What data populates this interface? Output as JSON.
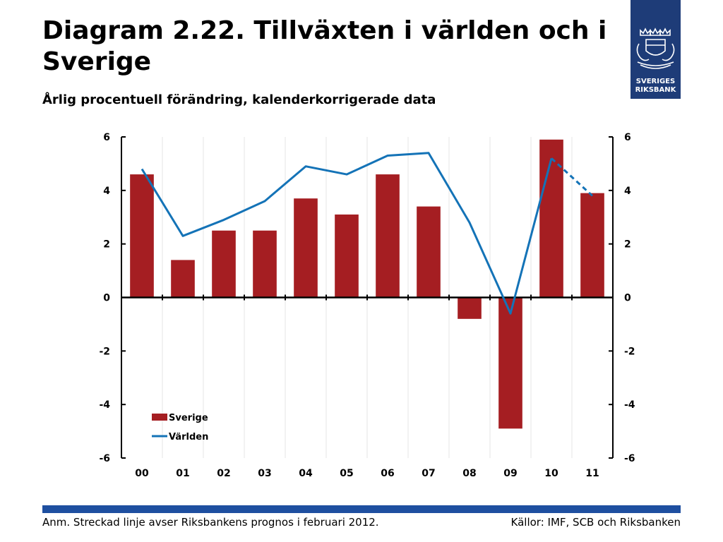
{
  "header": {
    "title": "Diagram 2.22. Tillväxten i världen och i Sverige",
    "subtitle": "Årlig procentuell förändring, kalenderkorrigerade data"
  },
  "logo": {
    "line1": "SVERIGES",
    "line2": "RIKSBANK",
    "icon": "riksbank-crest-icon",
    "color": "#1e3c78"
  },
  "chart_data": {
    "type": "bar",
    "categories": [
      "00",
      "01",
      "02",
      "03",
      "04",
      "05",
      "06",
      "07",
      "08",
      "09",
      "10",
      "11"
    ],
    "series": [
      {
        "name": "Sverige",
        "type": "bar",
        "color": "#a51e22",
        "values": [
          4.6,
          1.4,
          2.5,
          2.5,
          3.7,
          3.1,
          4.6,
          3.4,
          -0.8,
          -4.9,
          5.9,
          3.9
        ]
      },
      {
        "name": "Världen",
        "type": "line",
        "color": "#1473b7",
        "values": [
          4.8,
          2.3,
          2.9,
          3.6,
          4.9,
          4.6,
          5.3,
          5.4,
          2.8,
          -0.6,
          5.2,
          3.8
        ],
        "dashed_from_index": 10
      }
    ],
    "ylim": [
      -6,
      6
    ],
    "yticks": [
      6,
      4,
      2,
      0,
      -2,
      -4,
      -6
    ],
    "secondary_axis": true,
    "grid": true,
    "legend": "bottom-left"
  },
  "footer": {
    "note": "Anm. Streckad linje avser Riksbankens prognos i februari 2012.",
    "source": "Källor: IMF, SCB och Riksbanken"
  },
  "colors": {
    "accent_bar": "#1e4fa0"
  }
}
